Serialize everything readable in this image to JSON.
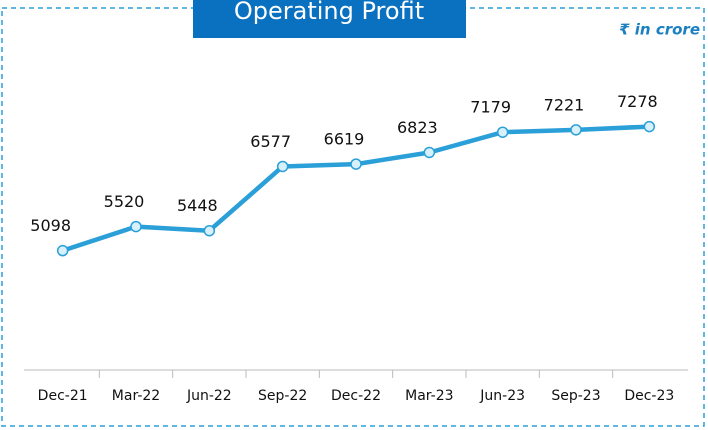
{
  "chart_data": {
    "type": "line",
    "title": "Operating Profit",
    "subtitle": "₹  in crore",
    "categories": [
      "Dec-21",
      "Mar-22",
      "Jun-22",
      "Sep-22",
      "Dec-22",
      "Mar-23",
      "Jun-23",
      "Sep-23",
      "Dec-23"
    ],
    "values": [
      5098,
      5520,
      5448,
      6577,
      6619,
      6823,
      7179,
      7221,
      7278
    ],
    "color": "#2a9fd8",
    "ylim": [
      3000,
      8800
    ],
    "grid": false
  }
}
